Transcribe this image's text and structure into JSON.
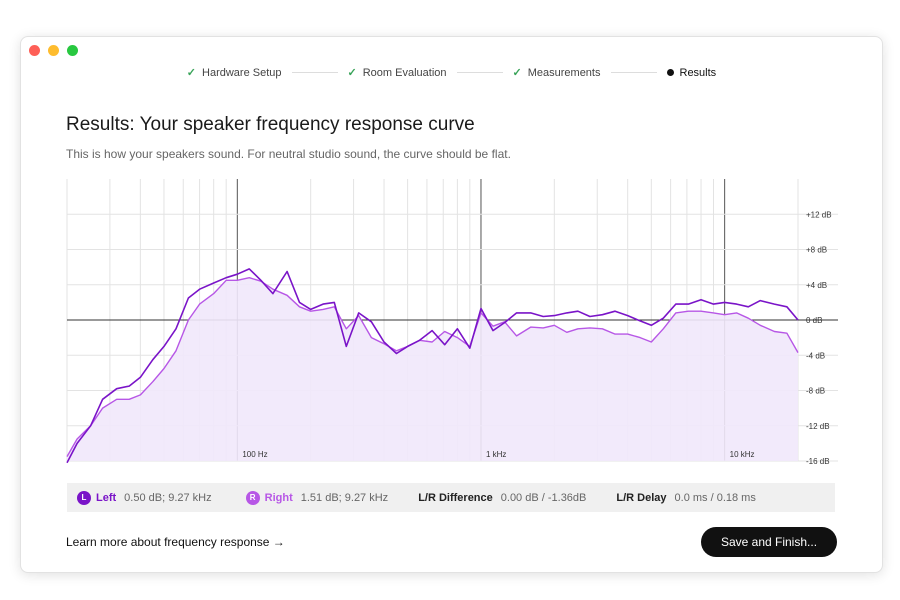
{
  "steps": [
    {
      "label": "Hardware Setup",
      "done": true
    },
    {
      "label": "Room Evaluation",
      "done": true
    },
    {
      "label": "Measurements",
      "done": true
    },
    {
      "label": "Results",
      "done": false
    }
  ],
  "page": {
    "title": "Results: Your speaker frequency response curve",
    "subtitle": "This is how your speakers sound. For neutral studio sound, the curve should be flat."
  },
  "colors": {
    "left": "#7a14c8",
    "right": "#b757e6",
    "fill": "#f1e8fb"
  },
  "legend": {
    "left": {
      "badge": "L",
      "name": "Left",
      "value": "0.50 dB; 9.27 kHz"
    },
    "right": {
      "badge": "R",
      "name": "Right",
      "value": "1.51 dB; 9.27 kHz"
    },
    "diff": {
      "label": "L/R Difference",
      "value": "0.00 dB / -1.36dB"
    },
    "delay": {
      "label": "L/R Delay",
      "value": "0.0 ms / 0.18 ms"
    }
  },
  "footer": {
    "learn_more": "Learn more about frequency response →",
    "save": "Save and Finish..."
  },
  "chart_data": {
    "type": "line",
    "x_scale": "log",
    "xlim": [
      20,
      20000
    ],
    "ylim": [
      -16,
      16
    ],
    "y_ticks": [
      12,
      8,
      4,
      0,
      -4,
      -8,
      -12,
      -16
    ],
    "y_tick_labels": [
      "+12 dB",
      "+8 dB",
      "+4 dB",
      "0 dB",
      "-4 dB",
      "-8 dB",
      "-12 dB",
      "-16 dB"
    ],
    "x_tick_labels": [
      {
        "x": 100,
        "label": "100 Hz"
      },
      {
        "x": 1000,
        "label": "1 kHz"
      },
      {
        "x": 10000,
        "label": "10 kHz"
      }
    ],
    "series": [
      {
        "name": "Left",
        "x": [
          20,
          22,
          25,
          28,
          32,
          36,
          40,
          45,
          50,
          56,
          63,
          70,
          80,
          90,
          100,
          112,
          125,
          140,
          160,
          180,
          200,
          225,
          250,
          280,
          315,
          355,
          400,
          450,
          500,
          560,
          630,
          710,
          800,
          900,
          1000,
          1120,
          1250,
          1400,
          1600,
          1800,
          2000,
          2250,
          2500,
          2800,
          3150,
          3550,
          4000,
          4500,
          5000,
          5600,
          6300,
          7100,
          8000,
          9000,
          10000,
          11200,
          12500,
          14000,
          16000,
          18000,
          20000
        ],
        "values": [
          -16.2,
          -14,
          -12,
          -9,
          -7.8,
          -7.5,
          -6.5,
          -4.5,
          -3,
          -1,
          2.5,
          3.5,
          4.2,
          4.8,
          5.2,
          5.8,
          4.5,
          3,
          5.5,
          2,
          1.2,
          1.8,
          2,
          -3,
          0.8,
          -0.2,
          -2.5,
          -3.8,
          -3,
          -2.3,
          -1.2,
          -2.8,
          -1,
          -3.2,
          1.3,
          -1.2,
          -0.3,
          0.8,
          0.8,
          0.4,
          0.5,
          0.8,
          1,
          0.4,
          0.6,
          1,
          0.5,
          -0.1,
          -0.6,
          0.2,
          1.8,
          1.8,
          2.3,
          1.8,
          2,
          1.8,
          1.5,
          2.2,
          1.8,
          1.5,
          0
        ]
      },
      {
        "name": "Right",
        "x": [
          20,
          22,
          25,
          28,
          32,
          36,
          40,
          45,
          50,
          56,
          63,
          70,
          80,
          90,
          100,
          112,
          125,
          140,
          160,
          180,
          200,
          225,
          250,
          280,
          315,
          355,
          400,
          450,
          500,
          560,
          630,
          710,
          800,
          900,
          1000,
          1120,
          1250,
          1400,
          1600,
          1800,
          2000,
          2250,
          2500,
          2800,
          3150,
          3550,
          4000,
          4500,
          5000,
          5600,
          6300,
          7100,
          8000,
          9000,
          10000,
          11200,
          12500,
          14000,
          16000,
          18000,
          20000
        ],
        "values": [
          -15.5,
          -13.5,
          -12,
          -10,
          -9,
          -9,
          -8.5,
          -7,
          -5.5,
          -3.5,
          0,
          1.8,
          3,
          4.5,
          4.5,
          4.8,
          4.4,
          3.5,
          2.8,
          1.5,
          1,
          1.2,
          1.5,
          -1,
          0.5,
          -2,
          -2.7,
          -3.5,
          -3,
          -2.3,
          -2.5,
          -1.3,
          -2,
          -3,
          0.8,
          -0.7,
          -0.2,
          -1.8,
          -0.8,
          -0.9,
          -0.6,
          -1.4,
          -1,
          -0.9,
          -1,
          -1.6,
          -1.6,
          -2,
          -2.5,
          -1,
          0.8,
          1,
          1,
          0.8,
          0.6,
          0.8,
          0.2,
          -0.6,
          -1.3,
          -1.5,
          -3.7
        ]
      }
    ]
  }
}
